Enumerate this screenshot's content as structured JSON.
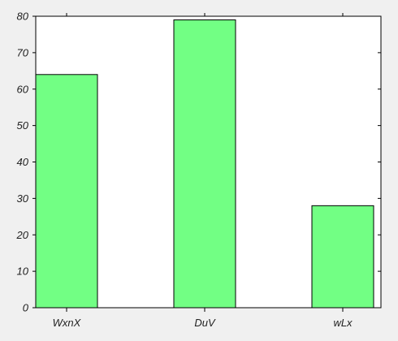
{
  "chart_data": {
    "type": "bar",
    "categories": [
      "WxnX",
      "DuV",
      "wLx"
    ],
    "values": [
      64,
      79,
      28
    ],
    "ylim": [
      0,
      80
    ],
    "yticks": [
      0,
      10,
      20,
      30,
      40,
      50,
      60,
      70,
      80
    ],
    "ytick_labels": [
      "0",
      "10",
      "20",
      "30",
      "40",
      "50",
      "60",
      "70",
      "80"
    ],
    "grid": false,
    "legend": false
  },
  "colors": {
    "background": "#f0f0f0",
    "plot_background": "#ffffff",
    "bar_fill": "#72ff84",
    "bar_edge": "#000000",
    "axis": "#000000",
    "text": "#222222"
  }
}
